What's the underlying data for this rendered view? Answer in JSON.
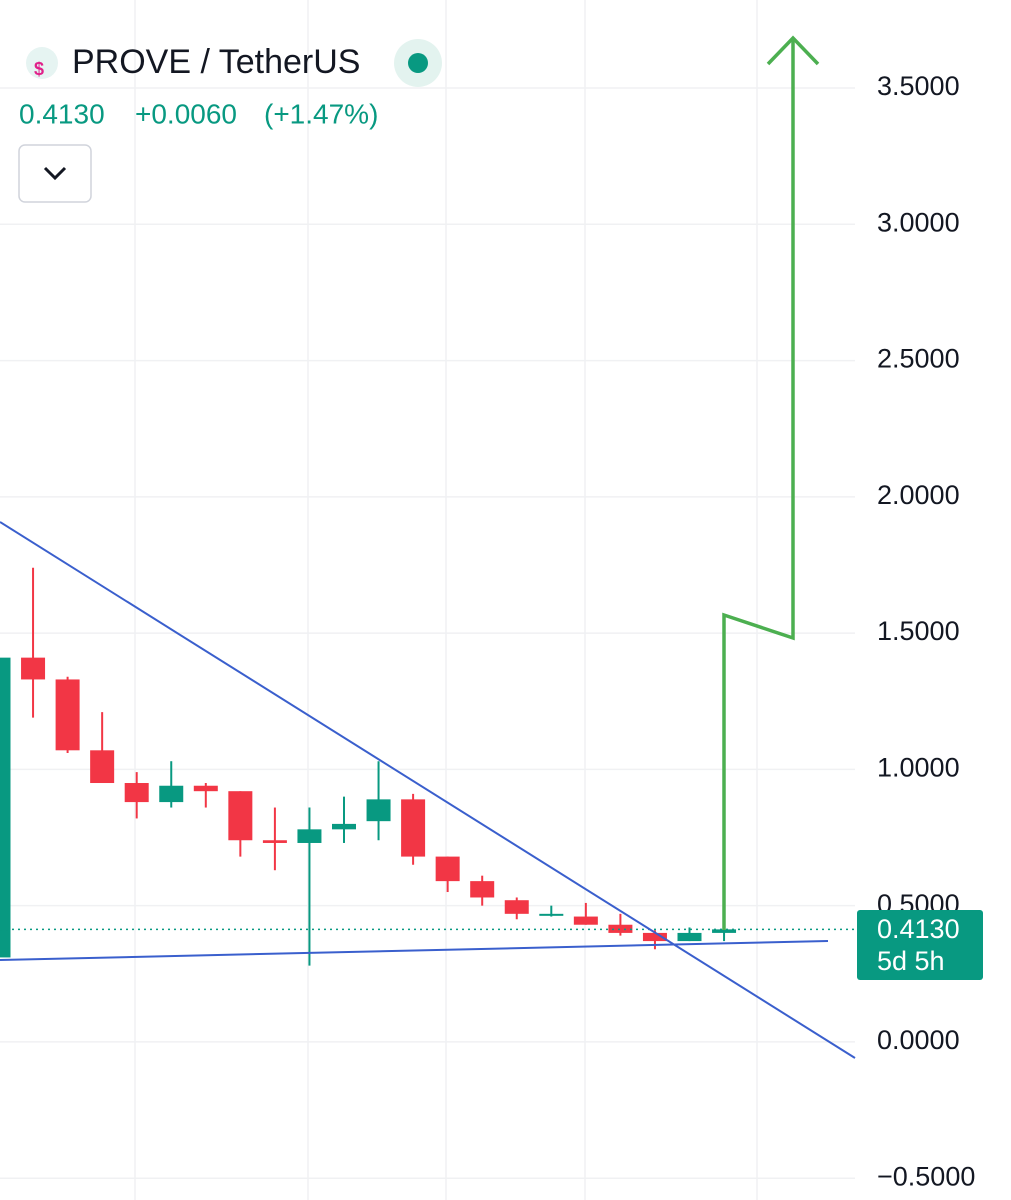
{
  "chart_data": {
    "type": "candlestick",
    "title": "PROVE / TetherUS",
    "price": "0.4130",
    "change": "+0.0060",
    "change_pct": "(+1.47%)",
    "price_tag": "0.4130",
    "countdown": "5d 5h",
    "up_color": "#089981",
    "down_color": "#f23645",
    "categories": [
      null,
      null,
      null,
      null,
      null,
      null,
      null,
      null,
      null,
      null,
      null,
      null,
      null,
      null,
      null,
      null,
      null,
      null,
      null,
      null,
      null,
      null
    ],
    "open": [
      0.31,
      1.41,
      1.33,
      1.07,
      0.95,
      0.88,
      0.94,
      0.92,
      0.74,
      0.73,
      0.78,
      0.81,
      0.89,
      0.68,
      0.59,
      0.52,
      0.47,
      0.46,
      0.43,
      0.4,
      0.37,
      0.4
    ],
    "high": [
      1.41,
      1.74,
      1.34,
      1.21,
      0.99,
      1.03,
      0.95,
      0.92,
      0.86,
      0.86,
      0.9,
      1.03,
      0.91,
      0.68,
      0.61,
      0.53,
      0.5,
      0.51,
      0.47,
      0.41,
      0.42,
      0.42
    ],
    "low": [
      0.31,
      1.19,
      1.06,
      0.95,
      0.82,
      0.86,
      0.86,
      0.68,
      0.63,
      0.28,
      0.73,
      0.74,
      0.65,
      0.55,
      0.5,
      0.45,
      0.46,
      0.43,
      0.39,
      0.34,
      0.37,
      0.37
    ],
    "close": [
      1.41,
      1.33,
      1.07,
      0.95,
      0.88,
      0.94,
      0.92,
      0.74,
      0.73,
      0.78,
      0.8,
      0.89,
      0.68,
      0.59,
      0.53,
      0.47,
      0.47,
      0.43,
      0.4,
      0.37,
      0.4,
      0.413
    ],
    "ylim": [
      -0.58,
      3.823
    ],
    "yticks": [
      {
        "value": -0.5,
        "label": "−0.5000"
      },
      {
        "value": 0,
        "label": "0.0000"
      },
      {
        "value": 0.5,
        "label": "0.5000"
      },
      {
        "value": 1,
        "label": "1.0000"
      },
      {
        "value": 1.5,
        "label": "1.5000"
      },
      {
        "value": 2,
        "label": "2.0000"
      },
      {
        "value": 2.5,
        "label": "2.5000"
      },
      {
        "value": 3,
        "label": "3.0000"
      },
      {
        "value": 3.5,
        "label": "3.5000"
      }
    ],
    "grid": true
  }
}
